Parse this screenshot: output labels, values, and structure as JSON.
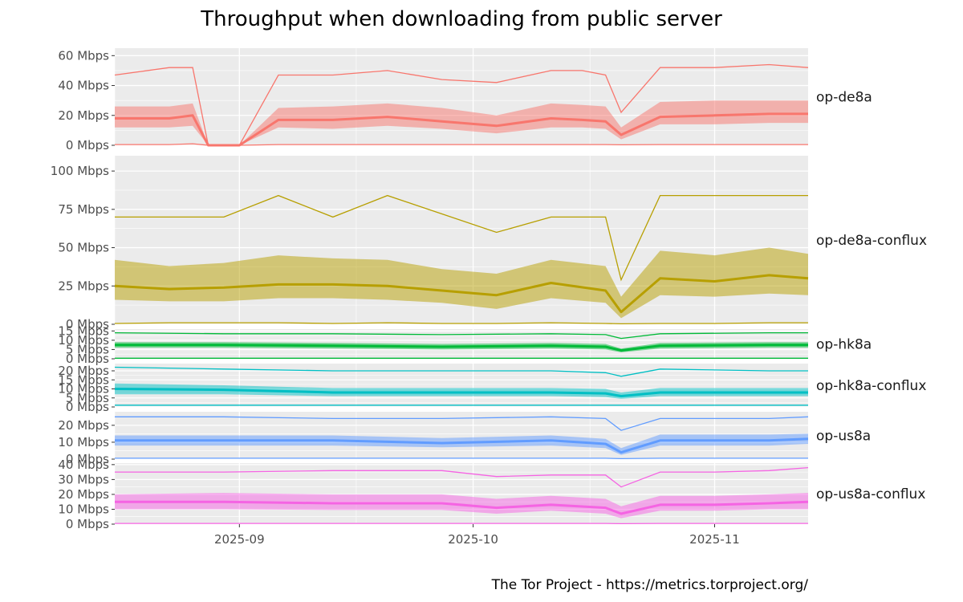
{
  "chart_data": {
    "type": "line",
    "title": "Throughput when downloading from public server",
    "caption": "The Tor Project - https://metrics.torproject.org/",
    "x_range": [
      "2025-08-16",
      "2025-11-13"
    ],
    "x_ticks": [
      {
        "date": "2025-09-01",
        "label": "2025-09"
      },
      {
        "date": "2025-10-01",
        "label": "2025-10"
      },
      {
        "date": "2025-11-01",
        "label": "2025-11"
      }
    ],
    "facets": [
      {
        "name": "op-de8a",
        "color": "#F8766D",
        "ylim": [
          0,
          65
        ],
        "y_ticks": [
          {
            "v": 0,
            "label": "0 Mbps"
          },
          {
            "v": 20,
            "label": "20 Mbps"
          },
          {
            "v": 40,
            "label": "40 Mbps"
          },
          {
            "v": 60,
            "label": "60 Mbps"
          }
        ],
        "dates": [
          "2025-08-16",
          "2025-08-23",
          "2025-08-26",
          "2025-08-28",
          "2025-08-30",
          "2025-09-01",
          "2025-09-06",
          "2025-09-13",
          "2025-09-20",
          "2025-09-27",
          "2025-10-04",
          "2025-10-11",
          "2025-10-15",
          "2025-10-18",
          "2025-10-20",
          "2025-10-25",
          "2025-11-01",
          "2025-11-08",
          "2025-11-13"
        ],
        "median": [
          18,
          18,
          20,
          0,
          0,
          0,
          17,
          17,
          19,
          16,
          13,
          18,
          17,
          16,
          7,
          19,
          20,
          21,
          21
        ],
        "q1": [
          12,
          12,
          13,
          0,
          0,
          0,
          12,
          11,
          13,
          11,
          8,
          12,
          12,
          11,
          4,
          14,
          14,
          15,
          15
        ],
        "q3": [
          26,
          26,
          28,
          0,
          0,
          0,
          25,
          26,
          28,
          25,
          20,
          28,
          27,
          26,
          12,
          29,
          30,
          30,
          30
        ],
        "high": [
          47,
          52,
          52,
          0,
          0,
          0,
          47,
          47,
          50,
          44,
          42,
          50,
          50,
          47,
          22,
          52,
          52,
          54,
          52
        ],
        "low": [
          0.5,
          0.5,
          1,
          0,
          0,
          0,
          0.5,
          0.5,
          0.5,
          0.5,
          0.5,
          0.5,
          0.5,
          0.5,
          0.3,
          0.5,
          0.5,
          0.5,
          0.5
        ]
      },
      {
        "name": "op-de8a-conflux",
        "color": "#B79F00",
        "ylim": [
          0,
          110
        ],
        "y_ticks": [
          {
            "v": 0,
            "label": "0 Mbps"
          },
          {
            "v": 25,
            "label": "25 Mbps"
          },
          {
            "v": 50,
            "label": "50 Mbps"
          },
          {
            "v": 75,
            "label": "75 Mbps"
          },
          {
            "v": 100,
            "label": "100 Mbps"
          }
        ],
        "dates": [
          "2025-08-16",
          "2025-08-23",
          "2025-08-30",
          "2025-09-06",
          "2025-09-13",
          "2025-09-20",
          "2025-09-27",
          "2025-10-04",
          "2025-10-11",
          "2025-10-18",
          "2025-10-20",
          "2025-10-25",
          "2025-11-01",
          "2025-11-08",
          "2025-11-13"
        ],
        "median": [
          25,
          23,
          24,
          26,
          26,
          25,
          22,
          19,
          27,
          22,
          8,
          30,
          28,
          32,
          30
        ],
        "q1": [
          16,
          15,
          15,
          17,
          17,
          16,
          14,
          10,
          17,
          14,
          4,
          19,
          18,
          20,
          19
        ],
        "q3": [
          42,
          38,
          40,
          45,
          43,
          42,
          36,
          33,
          42,
          38,
          18,
          48,
          45,
          50,
          46
        ],
        "high": [
          70,
          70,
          70,
          84,
          70,
          84,
          72,
          60,
          70,
          70,
          29,
          84,
          84,
          84,
          84
        ],
        "low": [
          0.5,
          1,
          1,
          1,
          0.5,
          1,
          0.5,
          0.5,
          1,
          0.5,
          0.3,
          0.5,
          0.5,
          1,
          1
        ]
      },
      {
        "name": "op-hk8a",
        "color": "#00BA38",
        "ylim": [
          0,
          16
        ],
        "y_ticks": [
          {
            "v": 0,
            "label": "0 Mbps"
          },
          {
            "v": 5,
            "label": "5 Mbps"
          },
          {
            "v": 10,
            "label": "10 Mbps"
          },
          {
            "v": 15,
            "label": "15 Mbps"
          }
        ],
        "dates": [
          "2025-08-16",
          "2025-08-30",
          "2025-09-13",
          "2025-09-27",
          "2025-10-11",
          "2025-10-18",
          "2025-10-20",
          "2025-10-25",
          "2025-11-08",
          "2025-11-13"
        ],
        "median": [
          7.5,
          7.5,
          7,
          6.5,
          7,
          6.5,
          4.5,
          7,
          7.5,
          7.5
        ],
        "q1": [
          6,
          6,
          5.5,
          5,
          5.5,
          5,
          3.5,
          5.5,
          6,
          6
        ],
        "q3": [
          9,
          9,
          8.5,
          8,
          8.5,
          8,
          5.5,
          8.5,
          9,
          9
        ],
        "high": [
          14,
          13.5,
          13.5,
          13,
          13.5,
          13,
          11,
          13.5,
          14,
          14
        ],
        "low": [
          0.3,
          0.3,
          0.3,
          0.3,
          0.3,
          0.3,
          0.3,
          0.3,
          0.3,
          0.3
        ]
      },
      {
        "name": "op-hk8a-conflux",
        "color": "#00BFC4",
        "ylim": [
          0,
          24
        ],
        "y_ticks": [
          {
            "v": 0,
            "label": "0 Mbps"
          },
          {
            "v": 5,
            "label": "5 Mbps"
          },
          {
            "v": 10,
            "label": "10 Mbps"
          },
          {
            "v": 15,
            "label": "15 Mbps"
          },
          {
            "v": 20,
            "label": "20 Mbps"
          }
        ],
        "dates": [
          "2025-08-16",
          "2025-08-30",
          "2025-09-13",
          "2025-09-27",
          "2025-10-11",
          "2025-10-18",
          "2025-10-20",
          "2025-10-25",
          "2025-11-08",
          "2025-11-13"
        ],
        "median": [
          10,
          9.5,
          8,
          8,
          8,
          7.5,
          6,
          8,
          8,
          8
        ],
        "q1": [
          7,
          7,
          6,
          6,
          6,
          5.5,
          4.5,
          6,
          6,
          6
        ],
        "q3": [
          13,
          12,
          10.5,
          10.5,
          10.5,
          10,
          8,
          10.5,
          10.5,
          10.5
        ],
        "high": [
          22,
          21,
          20,
          20,
          20,
          19,
          17,
          21,
          20,
          20
        ],
        "low": [
          1,
          1,
          1,
          1,
          1,
          1,
          1,
          1,
          1,
          1
        ]
      },
      {
        "name": "op-us8a",
        "color": "#619CFF",
        "ylim": [
          0,
          28
        ],
        "y_ticks": [
          {
            "v": 0,
            "label": "0 Mbps"
          },
          {
            "v": 10,
            "label": "10 Mbps"
          },
          {
            "v": 20,
            "label": "20 Mbps"
          }
        ],
        "dates": [
          "2025-08-16",
          "2025-08-30",
          "2025-09-13",
          "2025-09-27",
          "2025-10-11",
          "2025-10-18",
          "2025-10-20",
          "2025-10-25",
          "2025-11-08",
          "2025-11-13"
        ],
        "median": [
          11,
          11,
          11,
          9.5,
          11,
          9,
          4,
          11,
          11,
          12
        ],
        "q1": [
          8,
          8,
          8,
          7,
          8,
          6.5,
          2.5,
          8,
          8,
          9
        ],
        "q3": [
          14,
          14,
          14,
          12.5,
          14,
          12,
          6.5,
          14.5,
          14.5,
          15
        ],
        "high": [
          25,
          25,
          24,
          24,
          25,
          24,
          17,
          24,
          24,
          25
        ],
        "low": [
          0.5,
          0.5,
          0.5,
          0.5,
          0.5,
          0.5,
          0.3,
          0.5,
          0.5,
          0.5
        ]
      },
      {
        "name": "op-us8a-conflux",
        "color": "#F564E3",
        "ylim": [
          0,
          41
        ],
        "y_ticks": [
          {
            "v": 0,
            "label": "0 Mbps"
          },
          {
            "v": 10,
            "label": "10 Mbps"
          },
          {
            "v": 20,
            "label": "20 Mbps"
          },
          {
            "v": 30,
            "label": "30 Mbps"
          },
          {
            "v": 40,
            "label": "40 Mbps"
          }
        ],
        "dates": [
          "2025-08-16",
          "2025-08-30",
          "2025-09-13",
          "2025-09-27",
          "2025-10-04",
          "2025-10-11",
          "2025-10-18",
          "2025-10-20",
          "2025-10-25",
          "2025-11-01",
          "2025-11-08",
          "2025-11-13"
        ],
        "median": [
          15,
          15,
          14,
          14,
          11,
          13,
          11,
          7,
          13,
          13,
          14,
          15
        ],
        "q1": [
          10,
          10,
          9.5,
          9.5,
          7,
          9,
          7,
          4,
          9,
          9,
          10,
          10
        ],
        "q3": [
          20,
          21,
          20,
          20,
          17,
          19,
          17,
          12,
          19,
          19,
          20,
          21
        ],
        "high": [
          35,
          35,
          36,
          36,
          32,
          33,
          33,
          25,
          35,
          35,
          36,
          38
        ],
        "low": [
          0.5,
          0.5,
          0.5,
          0.5,
          0.5,
          0.5,
          0.5,
          0.3,
          0.5,
          0.5,
          0.5,
          0.5
        ]
      }
    ]
  }
}
